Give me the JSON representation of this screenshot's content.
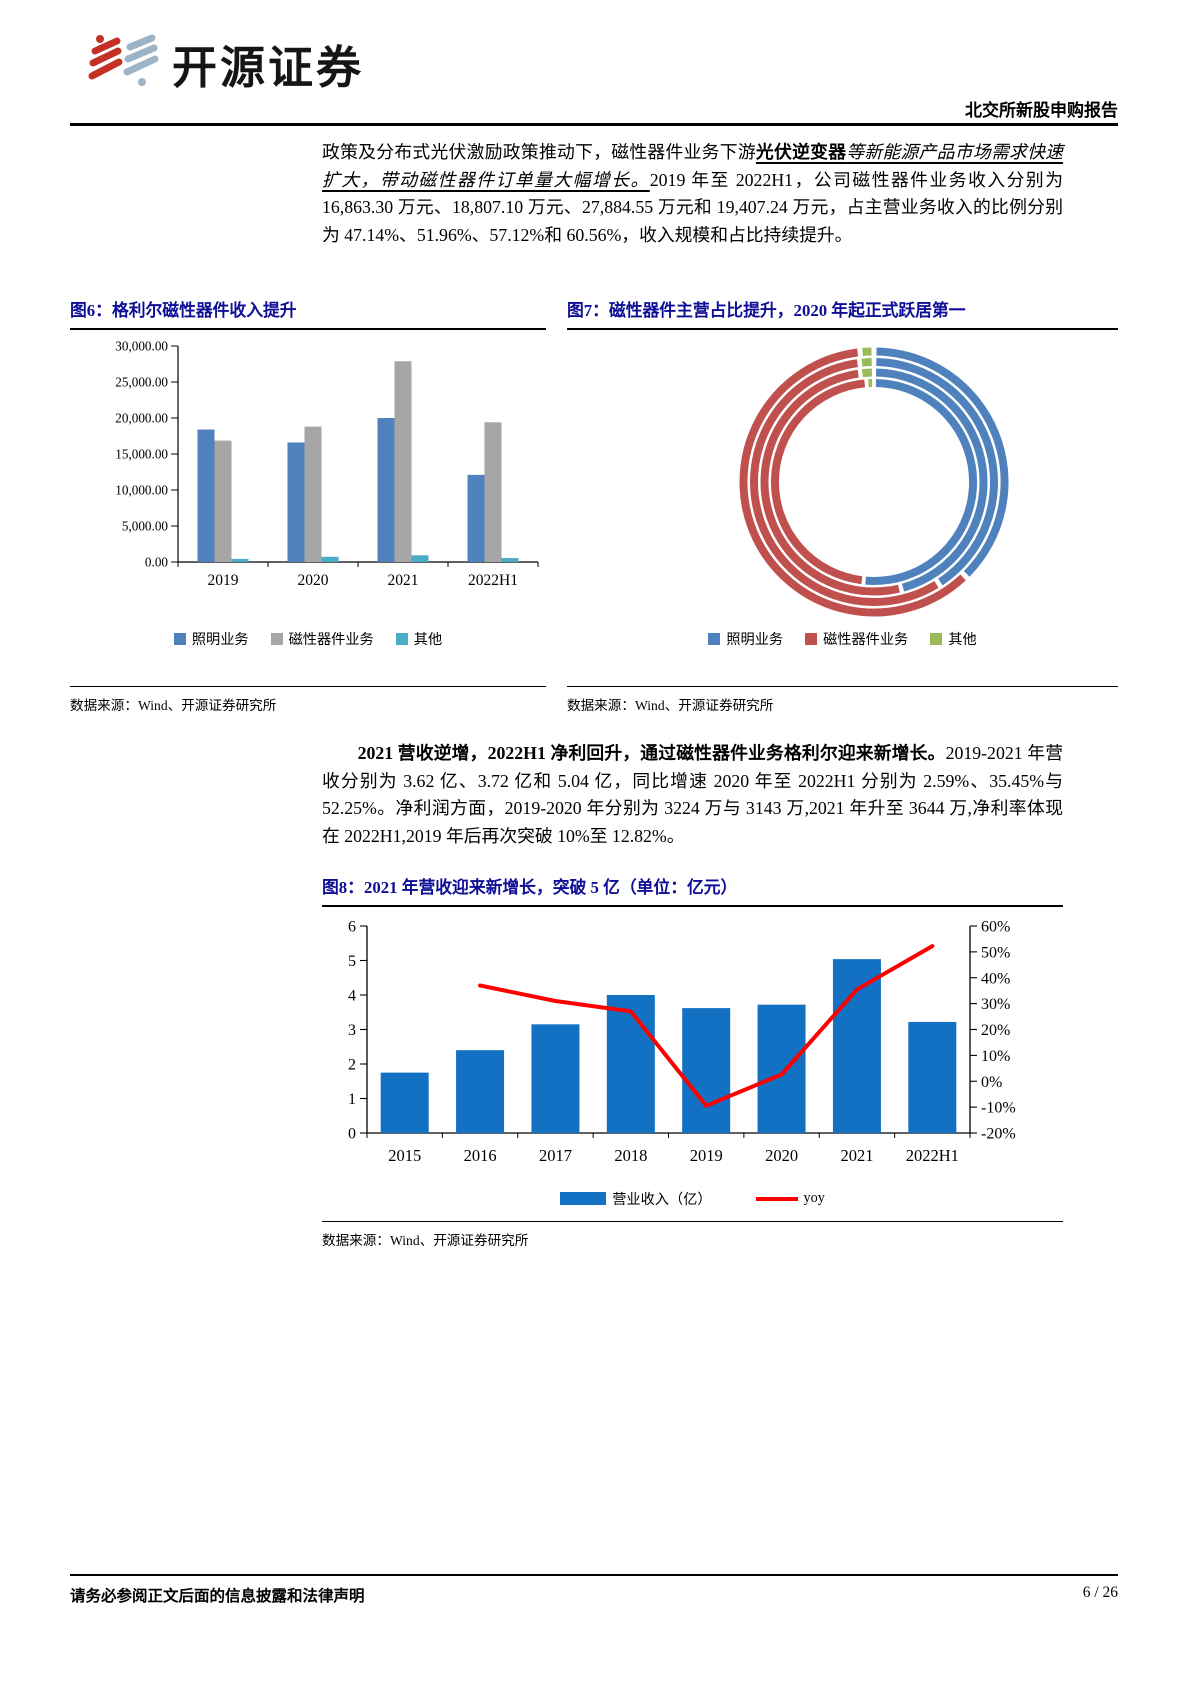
{
  "header": {
    "brand": "开源证券",
    "report_type": "北交所新股申购报告"
  },
  "paragraphs": {
    "p1_seg1": "政策及分布式光伏激励政策推动下，磁性器件业务下游",
    "p1_seg2": "光伏逆变器",
    "p1_seg3": "等新能源产品市场需求快速扩大，带动磁性器件订单量大幅增长。",
    "p1_seg4": "2019 年至 2022H1，公司磁性器件业务收入分别为 16,863.30 万元、18,807.10 万元、27,884.55 万元和 19,407.24 万元，占主营业务收入的比例分别为 47.14%、51.96%、57.12%和 60.56%，收入规模和占比持续提升。",
    "p2_lead": "2021 营收逆增，2022H1 净利回升，通过磁性器件业务格利尔迎来新增长。",
    "p2_rest": "2019-2021 年营收分别为 3.62 亿、3.72 亿和 5.04 亿，同比增速 2020 年至 2022H1 分别为 2.59%、35.45%与 52.25%。净利润方面，2019-2020 年分别为 3224 万与 3143 万,2021 年升至 3644 万,净利率体现在 2022H1,2019 年后再次突破 10%至 12.82%。"
  },
  "figure6": {
    "title": "图6：格利尔磁性器件收入提升",
    "source": "数据来源：Wind、开源证券研究所"
  },
  "figure7": {
    "title": "图7：磁性器件主营占比提升，2020 年起正式跃居第一",
    "source": "数据来源：Wind、开源证券研究所"
  },
  "figure8": {
    "title": "图8：2021 年营收迎来新增长，突破 5 亿（单位：亿元）",
    "source": "数据来源：Wind、开源证券研究所"
  },
  "footer": {
    "disclaimer": "请务必参阅正文后面的信息披露和法律声明",
    "page": "6 / 26"
  },
  "chart_data": [
    {
      "id": "fig6",
      "type": "bar",
      "title": "图6：格利尔磁性器件收入提升",
      "unit": "万元",
      "categories": [
        "2019",
        "2020",
        "2021",
        "2022H1"
      ],
      "series": [
        {
          "name": "照明业务",
          "color": "#4F81BD",
          "values": [
            18400,
            16600,
            20000,
            12100
          ]
        },
        {
          "name": "磁性器件业务",
          "color": "#A6A6A6",
          "values": [
            16863.3,
            18807.1,
            27884.55,
            19407.24
          ]
        },
        {
          "name": "其他",
          "color": "#4BACC6",
          "values": [
            430,
            720,
            930,
            545
          ]
        }
      ],
      "ylim": [
        0,
        30000
      ],
      "ytick_step": 5000,
      "grid": false,
      "legend_position": "bottom"
    },
    {
      "id": "fig7",
      "type": "donut-multi-ring",
      "title": "图7：磁性器件主营占比提升，2020 年起正式跃居第一",
      "rings_inner_to_outer": [
        "2019",
        "2020",
        "2021",
        "2022H1"
      ],
      "segments": [
        "照明业务",
        "磁性器件业务",
        "其他"
      ],
      "colors": [
        "#4F81BD",
        "#C0504D",
        "#9BBB59"
      ],
      "values_pct": [
        [
          51.66,
          47.14,
          1.2
        ],
        [
          46.04,
          51.96,
          2.0
        ],
        [
          40.98,
          57.12,
          1.9
        ],
        [
          37.74,
          60.56,
          1.7
        ]
      ],
      "legend_position": "bottom"
    },
    {
      "id": "fig8",
      "type": "bar+line",
      "title": "图8：2021 年营收迎来新增长，突破 5 亿（单位：亿元）",
      "categories": [
        "2015",
        "2016",
        "2017",
        "2018",
        "2019",
        "2020",
        "2021",
        "2022H1"
      ],
      "bar_series": {
        "name": "营业收入（亿）",
        "color": "#1271C3",
        "axis": "left",
        "values": [
          1.75,
          2.4,
          3.15,
          4.0,
          3.62,
          3.72,
          5.04,
          3.22
        ]
      },
      "line_series": {
        "name": "yoy",
        "color": "#FF0000",
        "axis": "right",
        "values": [
          null,
          37,
          31,
          27,
          -9.5,
          2.59,
          35.45,
          52.25
        ]
      },
      "left_ylim": [
        0,
        6
      ],
      "left_tick_step": 1,
      "right_ylim": [
        -20,
        60
      ],
      "right_tick_step": 10,
      "right_tick_suffix": "%",
      "grid": false,
      "legend_position": "bottom"
    }
  ]
}
